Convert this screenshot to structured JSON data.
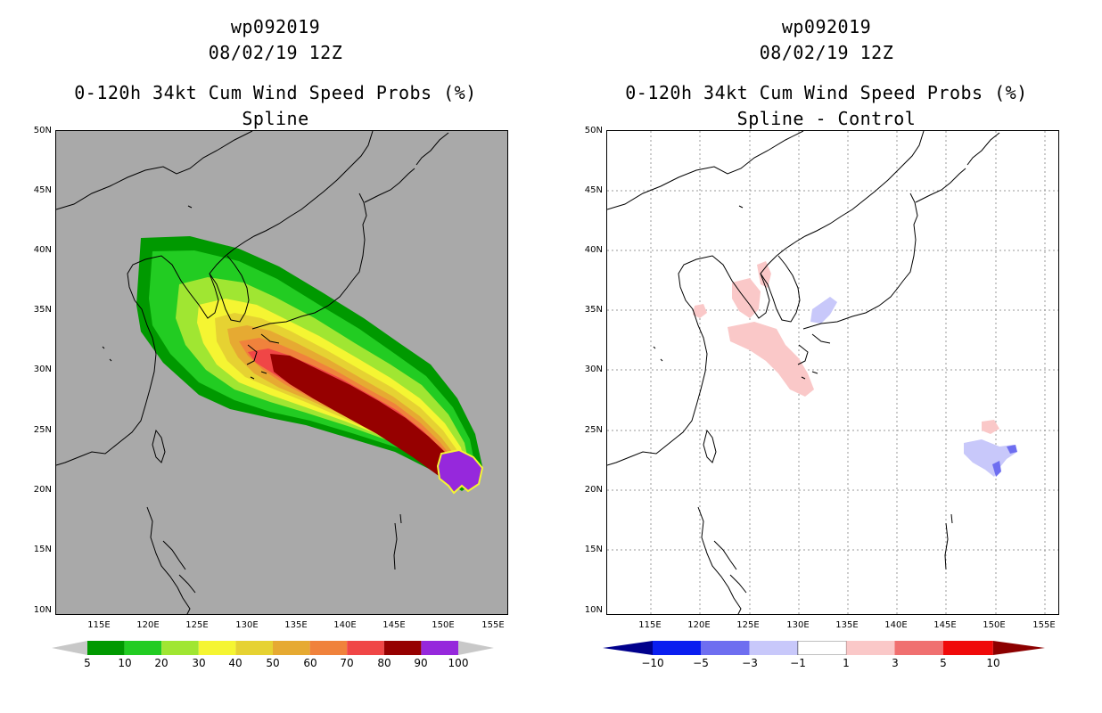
{
  "panels": [
    {
      "title_id": "wp092019",
      "title_time": "08/02/19 12Z",
      "title_product": "0-120h 34kt Cum Wind Speed Probs (%)",
      "title_sub": "Spline",
      "map_bg": "#a9a9a9",
      "colorbar": {
        "colors": [
          "#c8c8c8",
          "#009900",
          "#22cc22",
          "#a0e632",
          "#f5f532",
          "#e6d232",
          "#e6aa32",
          "#f0823c",
          "#f04646",
          "#960000",
          "#9628dc",
          "#c8c8c8"
        ],
        "labels": [
          "5",
          "10",
          "20",
          "30",
          "40",
          "50",
          "60",
          "70",
          "80",
          "90",
          "100"
        ]
      }
    },
    {
      "title_id": "wp092019",
      "title_time": "08/02/19 12Z",
      "title_product": "0-120h 34kt Cum Wind Speed Probs (%)",
      "title_sub": "Spline - Control",
      "map_bg": "#ffffff",
      "colorbar": {
        "colors": [
          "#00008c",
          "#0a1ef0",
          "#6e6ef0",
          "#c8c8fa",
          "#ffffff",
          "#fac8c8",
          "#f07070",
          "#f00a0a",
          "#8c0000"
        ],
        "labels": [
          "−10",
          "−5",
          "−3",
          "−1",
          "1",
          "3",
          "5",
          "10"
        ]
      }
    }
  ],
  "axes": {
    "lat_labels": [
      "50N",
      "45N",
      "40N",
      "35N",
      "30N",
      "25N",
      "20N",
      "15N",
      "10N"
    ],
    "lon_labels": [
      "115E",
      "120E",
      "125E",
      "130E",
      "135E",
      "140E",
      "145E",
      "150E",
      "155E"
    ]
  },
  "map_extent": {
    "lon_min": 110,
    "lon_max": 156,
    "lat_min": 9.5,
    "lat_max": 50
  }
}
